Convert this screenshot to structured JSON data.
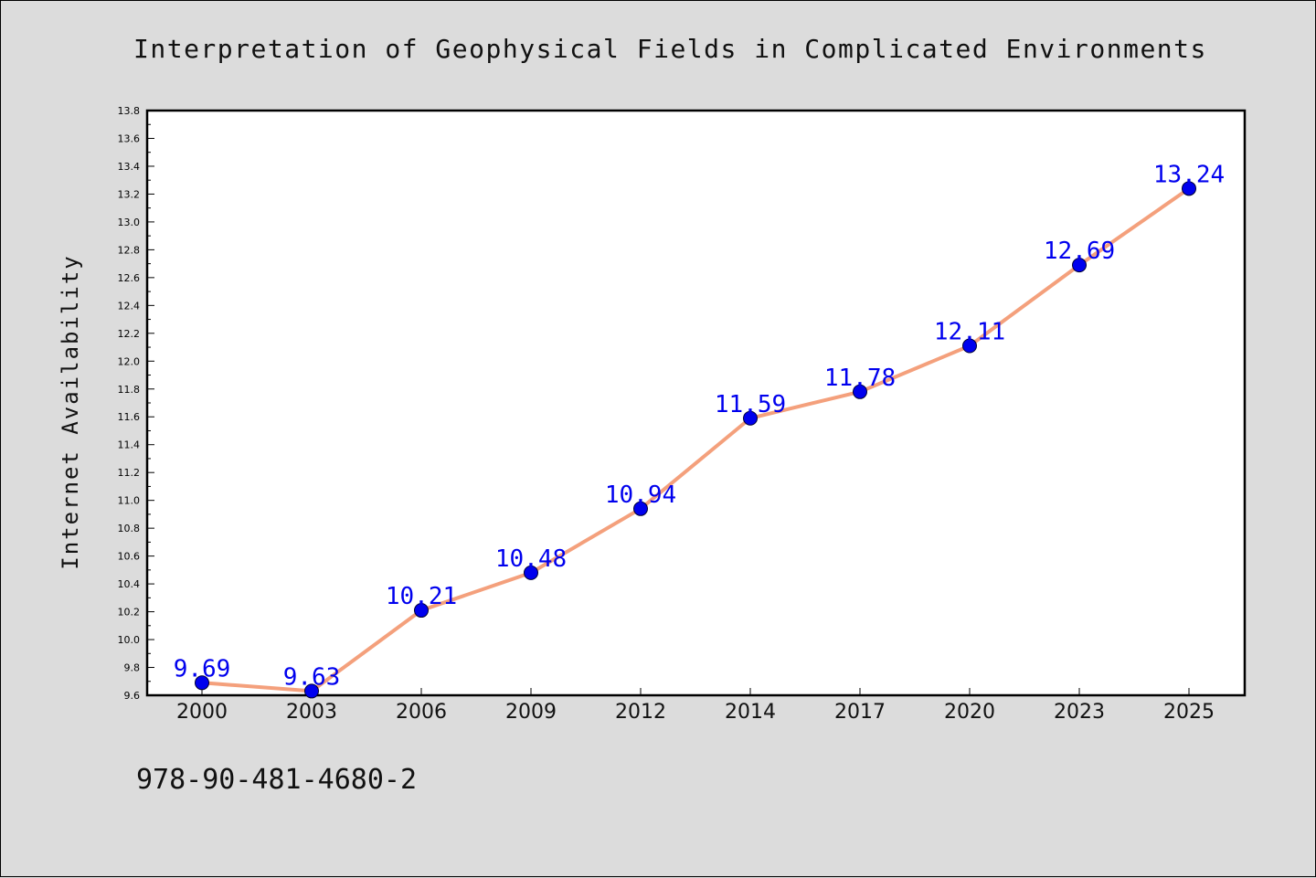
{
  "page": {
    "isbn": "978-90-481-4680-2"
  },
  "chart_data": {
    "type": "line",
    "title": "Interpretation of Geophysical Fields in Complicated Environments",
    "ylabel": "Internet Availability",
    "xlabel": "",
    "categories": [
      "2000",
      "2003",
      "2006",
      "2009",
      "2012",
      "2014",
      "2017",
      "2020",
      "2023",
      "2025"
    ],
    "series": [
      {
        "values": [
          9.69,
          9.63,
          10.21,
          10.48,
          10.94,
          11.59,
          11.78,
          12.11,
          12.69,
          13.24
        ],
        "labels": [
          "9.69",
          "9.63",
          "10.21",
          "10.48",
          "10.94",
          "11.59",
          "11.78",
          "12.11",
          "12.69",
          "13.24"
        ]
      }
    ],
    "ylim": [
      9.6,
      13.8
    ],
    "yticks": [
      "9.6",
      "9.8",
      "10.0",
      "10.2",
      "10.4",
      "10.6",
      "10.8",
      "11.0",
      "11.2",
      "11.4",
      "11.6",
      "11.8",
      "12.0",
      "12.2",
      "12.4",
      "12.6",
      "12.8",
      "13.0",
      "13.2",
      "13.4",
      "13.6",
      "13.8"
    ],
    "grid": false,
    "colors": {
      "line": "#f4a07c",
      "marker": "#0000ee",
      "marker_edge": "#000033",
      "data_label": "#0000ee",
      "plot_bg": "#ffffff"
    }
  }
}
